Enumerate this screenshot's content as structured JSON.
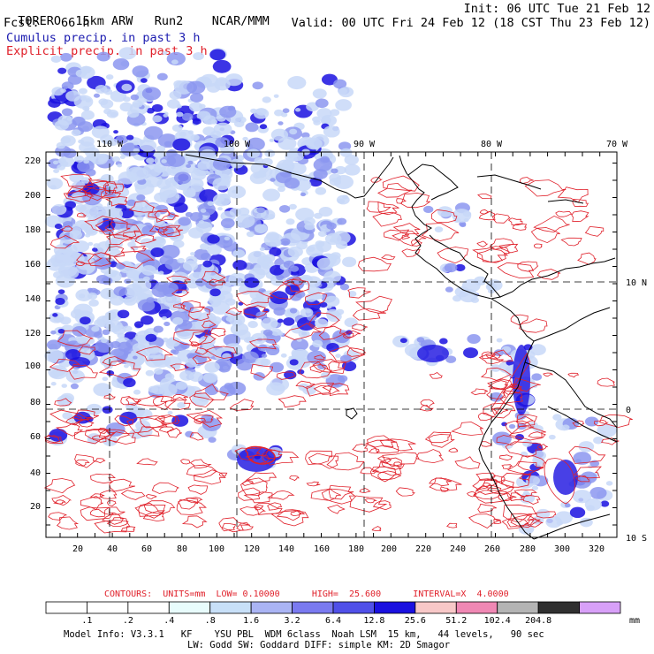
{
  "header": {
    "model": "TORERO",
    "resolution": "15km ARW",
    "run": "Run2",
    "org": "NCAR/MMM",
    "init": "Init: 06 UTC Tue 21 Feb 12",
    "fcst_label": "Fcst:",
    "fcst_value": "66 h",
    "valid": "Valid: 00 UTC Fri 24 Feb 12 (18 CST Thu 23 Feb 12)",
    "cumulus": "Cumulus precip. in past 3 h",
    "explicit": "Explicit precip. in past 3 h"
  },
  "map": {
    "top_lon_labels": [
      "110 W",
      "100 W",
      "90 W",
      "80 W",
      "70 W"
    ],
    "right_lat_labels": [
      "10 N",
      "0",
      "10 S"
    ],
    "y_ticks": [
      "20",
      "40",
      "60",
      "80",
      "100",
      "120",
      "140",
      "160",
      "180",
      "200",
      "220"
    ],
    "x_ticks": [
      "20",
      "40",
      "60",
      "80",
      "100",
      "120",
      "140",
      "160",
      "180",
      "200",
      "220",
      "240",
      "260",
      "280",
      "300",
      "320"
    ],
    "colors": {
      "coast": "#000000",
      "explicit": "#e0202a",
      "cumulus_light": "#c8d8f8",
      "cumulus_mid": "#8c96f0",
      "cumulus_dark": "#1a10e0"
    }
  },
  "contours": {
    "label": "CONTOURS:",
    "units": "UNITS=mm",
    "low": "LOW= 0.10000",
    "high": "HIGH=  25.600",
    "interval": "INTERVAL=X  4.0000"
  },
  "colorbar": {
    "unit": "mm",
    "labels": [
      ".1",
      ".2",
      ".4",
      ".8",
      "1.6",
      "3.2",
      "6.4",
      "12.8",
      "25.6",
      "51.2",
      "102.4",
      "204.8"
    ],
    "colors": [
      "#ffffff",
      "#ffffff",
      "#ffffff",
      "#e8fcfc",
      "#c8e0f8",
      "#aab4f4",
      "#7a7af0",
      "#5050e8",
      "#1a10e0",
      "#f8c8c8",
      "#f088b4",
      "#b4b4b4",
      "#303030",
      "#d8a0f8"
    ]
  },
  "footer": {
    "line1": "Model Info: V3.3.1   KF    YSU PBL  WDM 6class  Noah LSM  15 km,   44 levels,   90 sec",
    "line2": "LW: Godd SW: Goddard DIFF: simple KM: 2D Smagor"
  }
}
